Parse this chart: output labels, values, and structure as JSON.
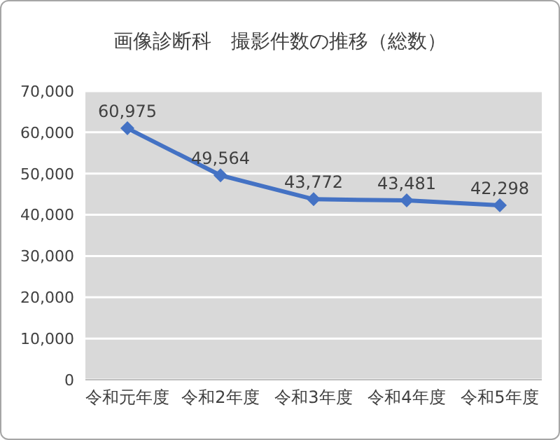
{
  "chart_data": {
    "type": "line",
    "title": "画像診断科　撮影件数の推移（総数）",
    "categories": [
      "令和元年度",
      "令和2年度",
      "令和3年度",
      "令和4年度",
      "令和5年度"
    ],
    "series": [
      {
        "color": "#4472c4",
        "values": [
          60975,
          49564,
          43772,
          43481,
          42298
        ],
        "value_labels": [
          "60,975",
          "49,564",
          "43,772",
          "43,481",
          "42,298"
        ]
      }
    ],
    "ylim": [
      0,
      70000
    ],
    "yticks": [
      {
        "value": 0,
        "label": "0"
      },
      {
        "value": 10000,
        "label": "10,000"
      },
      {
        "value": 20000,
        "label": "20,000"
      },
      {
        "value": 30000,
        "label": "30,000"
      },
      {
        "value": 40000,
        "label": "40,000"
      },
      {
        "value": 50000,
        "label": "50,000"
      },
      {
        "value": 60000,
        "label": "60,000"
      },
      {
        "value": 70000,
        "label": "70,000"
      }
    ],
    "grid": "y",
    "marker": "diamond",
    "line_style": "solid",
    "legend": false
  }
}
